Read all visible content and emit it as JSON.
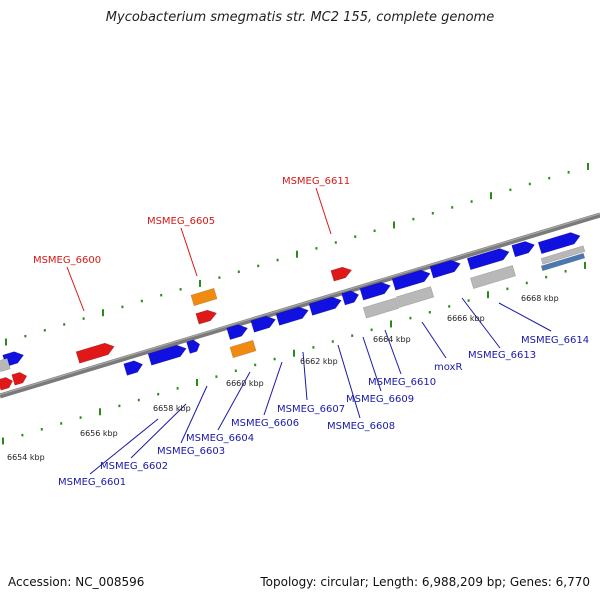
{
  "title": "Mycobacterium smegmatis str. MC2 155, complete genome",
  "footer": {
    "accession": "Accession: NC_008596",
    "topology": "Topology: circular; Length: 6,988,209 bp; Genes: 6,770"
  },
  "colors": {
    "forward_gene": "#1010e0",
    "forward_label": "#1a1aa8",
    "reverse_gene": "#e01818",
    "reverse_label": "#d81818",
    "orange_gene": "#f08a10",
    "tick_green": "#2a8a1a",
    "backbone": "#7a7a7a",
    "gray_feature": "#b8b8b8",
    "steel_feature": "#4a78b0"
  },
  "scale_labels": [
    "6654 kbp",
    "6656 kbp",
    "6658 kbp",
    "6660 kbp",
    "6662 kbp",
    "6664 kbp",
    "6666 kbp",
    "6668 kbp"
  ],
  "reverse_gene_labels": [
    "MSMEG_6600",
    "MSMEG_6605",
    "MSMEG_6611"
  ],
  "forward_gene_labels": [
    "MSMEG_6601",
    "MSMEG_6602",
    "MSMEG_6603",
    "MSMEG_6604",
    "MSMEG_6606",
    "MSMEG_6607",
    "MSMEG_6608",
    "MSMEG_6609",
    "MSMEG_6610",
    "moxR",
    "MSMEG_6613",
    "MSMEG_6614"
  ]
}
